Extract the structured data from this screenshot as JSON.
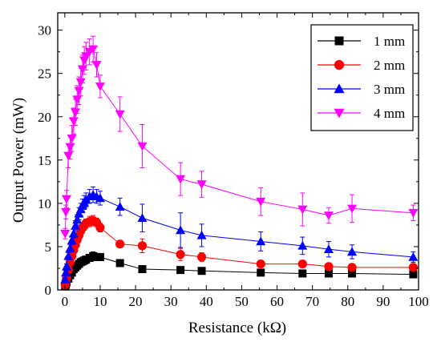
{
  "chart_data": {
    "type": "scatter",
    "xlabel": "Resistance (kΩ)",
    "ylabel": "Output Power (mW)",
    "xlim": [
      -2,
      100
    ],
    "ylim": [
      0,
      32
    ],
    "xticks": [
      0,
      10,
      20,
      30,
      40,
      50,
      60,
      70,
      80,
      90,
      100
    ],
    "yticks": [
      0,
      5,
      10,
      15,
      20,
      25,
      30
    ],
    "grid": false,
    "legend_position": "top-right",
    "series": [
      {
        "name": "1 mm",
        "color": "#000000",
        "marker": "square",
        "x": [
          0.1,
          0.3,
          0.5,
          1,
          1.5,
          2,
          2.5,
          3,
          3.5,
          4,
          4.5,
          5,
          5.5,
          6,
          7,
          8,
          9,
          10,
          15.6,
          21.9,
          32.7,
          38.7,
          55.4,
          67.2,
          74.6,
          81.2,
          98.5
        ],
        "y": [
          0.4,
          0.6,
          0.9,
          1.3,
          1.7,
          2.0,
          2.4,
          2.6,
          2.8,
          3.0,
          3.2,
          3.3,
          3.4,
          3.5,
          3.7,
          3.9,
          3.8,
          3.8,
          3.1,
          2.4,
          2.3,
          2.2,
          2.0,
          1.9,
          1.9,
          1.9,
          1.8
        ],
        "err": [
          0.1,
          0.1,
          0.1,
          0.1,
          0.2,
          0.2,
          0.2,
          0.2,
          0.2,
          0.3,
          0.3,
          0.3,
          0.3,
          0.3,
          0.4,
          0.5,
          0.4,
          0.4,
          0.3,
          0.2,
          0.3,
          0.2,
          0.2,
          0.2,
          0.2,
          0.2,
          0.2
        ]
      },
      {
        "name": "2 mm",
        "color": "#ff0000",
        "marker": "circle",
        "x": [
          0.1,
          0.3,
          0.5,
          1,
          1.5,
          2,
          2.5,
          3,
          3.5,
          4,
          4.5,
          5,
          5.5,
          6,
          7,
          8,
          9,
          10,
          15.6,
          21.9,
          32.7,
          38.7,
          55.4,
          67.2,
          74.6,
          81.2,
          98.5
        ],
        "y": [
          0.6,
          1.0,
          1.4,
          2.3,
          3.2,
          3.9,
          4.6,
          5.2,
          5.8,
          6.3,
          6.8,
          7.2,
          7.4,
          7.7,
          7.9,
          8.0,
          7.8,
          7.2,
          5.3,
          5.1,
          4.1,
          3.8,
          3.0,
          3.0,
          2.7,
          2.6,
          2.6
        ],
        "err": [
          0.1,
          0.1,
          0.2,
          0.2,
          0.3,
          0.3,
          0.3,
          0.4,
          0.4,
          0.4,
          0.5,
          0.5,
          0.5,
          0.5,
          0.6,
          0.6,
          0.5,
          0.5,
          0.4,
          0.8,
          0.7,
          0.5,
          0.4,
          0.4,
          0.4,
          0.3,
          0.3
        ]
      },
      {
        "name": "3 mm",
        "color": "#0000ff",
        "marker": "triangle-up",
        "x": [
          0.1,
          0.3,
          0.5,
          1,
          1.5,
          2,
          2.5,
          3,
          3.5,
          4,
          4.5,
          5,
          5.5,
          6,
          7,
          8,
          9,
          10,
          15.6,
          21.9,
          32.7,
          38.7,
          55.4,
          67.2,
          74.6,
          81.2,
          98.5
        ],
        "y": [
          1.2,
          2.0,
          2.7,
          3.9,
          4.8,
          5.7,
          6.5,
          7.4,
          8.1,
          8.8,
          9.3,
          9.8,
          10.1,
          10.4,
          10.8,
          11.0,
          10.8,
          10.6,
          9.6,
          8.3,
          6.9,
          6.3,
          5.6,
          5.1,
          4.7,
          4.4,
          3.8
        ],
        "err": [
          0.2,
          0.2,
          0.3,
          0.4,
          0.4,
          0.5,
          0.5,
          0.6,
          0.6,
          0.7,
          0.7,
          0.7,
          0.8,
          0.8,
          0.8,
          0.9,
          0.8,
          0.8,
          1.0,
          1.6,
          2.0,
          1.3,
          1.1,
          1.0,
          0.9,
          0.8,
          0.6
        ]
      },
      {
        "name": "4 mm",
        "color": "#ff00ff",
        "marker": "triangle-down",
        "x": [
          0.1,
          0.3,
          0.5,
          1,
          1.5,
          2,
          2.5,
          3,
          3.5,
          4,
          4.5,
          5,
          5.5,
          6,
          7,
          8,
          9,
          10,
          15.6,
          21.9,
          32.7,
          38.7,
          55.4,
          67.2,
          74.6,
          81.2,
          98.5
        ],
        "y": [
          6.5,
          9.0,
          10.5,
          15.5,
          16.5,
          17.5,
          19.5,
          20.5,
          22.0,
          23.0,
          24.0,
          25.5,
          26.5,
          27.0,
          27.5,
          27.8,
          26.0,
          23.5,
          20.3,
          16.6,
          12.8,
          12.2,
          10.2,
          9.3,
          8.6,
          9.4,
          8.9
        ],
        "err": [
          0.6,
          0.8,
          1.0,
          1.4,
          1.4,
          1.5,
          1.5,
          1.5,
          1.6,
          1.6,
          1.6,
          1.6,
          1.6,
          1.6,
          1.5,
          1.5,
          1.4,
          1.3,
          2.0,
          2.5,
          1.9,
          1.5,
          1.6,
          1.9,
          0.9,
          1.6,
          0.9
        ]
      }
    ]
  }
}
